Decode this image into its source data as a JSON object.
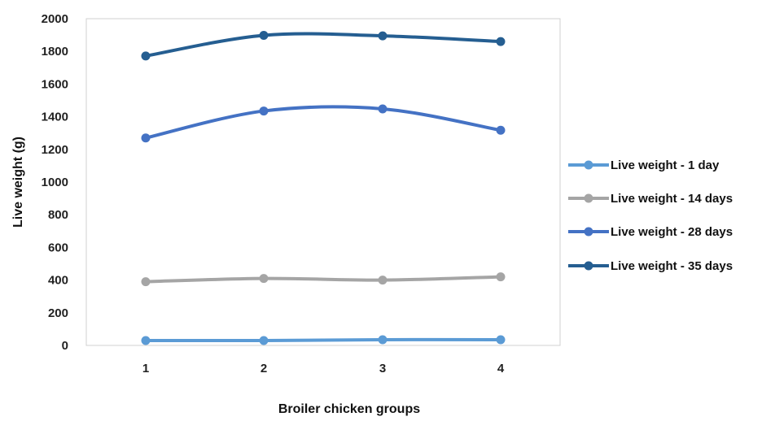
{
  "chart_data": {
    "type": "line",
    "title": "",
    "xlabel": "Broiler chicken groups",
    "ylabel": "Live weight (g)",
    "categories": [
      "1",
      "2",
      "3",
      "4"
    ],
    "ylim": [
      0,
      2000
    ],
    "yticks": [
      "0",
      "200",
      "400",
      "600",
      "800",
      "1000",
      "1200",
      "1400",
      "1600",
      "1800",
      "2000"
    ],
    "grid": false,
    "smooth": true,
    "legend_position": "right",
    "series": [
      {
        "name": "Live weight - 1 day",
        "color": "#5B9BD5",
        "values": [
          30,
          30,
          35,
          35
        ]
      },
      {
        "name": "Live weight - 14 days",
        "color": "#A5A5A5",
        "values": [
          390,
          410,
          400,
          420
        ]
      },
      {
        "name": "Live weight - 28 days",
        "color": "#4472C4",
        "values": [
          1270,
          1435,
          1448,
          1317
        ]
      },
      {
        "name": "Live weight -  35 days",
        "color": "#255E91",
        "values": [
          1772,
          1898,
          1895,
          1860
        ]
      }
    ]
  }
}
